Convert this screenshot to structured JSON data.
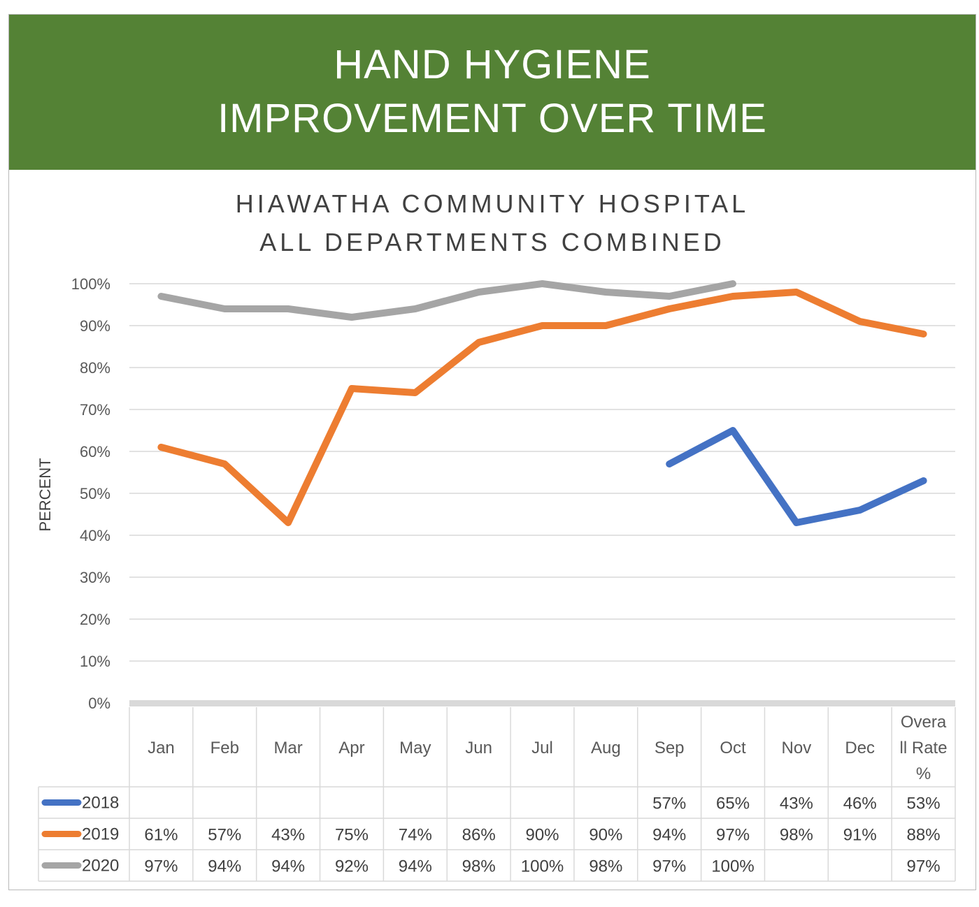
{
  "header": {
    "title_line1": "HAND HYGIENE",
    "title_line2": "IMPROVEMENT OVER TIME"
  },
  "subtitle": {
    "line1": "HIAWATHA COMMUNITY HOSPITAL",
    "line2": "ALL DEPARTMENTS COMBINED"
  },
  "chart_data": {
    "type": "line",
    "ylabel": "PERCENT",
    "ylim": [
      0,
      100
    ],
    "yticks": [
      "0%",
      "10%",
      "20%",
      "30%",
      "40%",
      "50%",
      "60%",
      "70%",
      "80%",
      "90%",
      "100%"
    ],
    "categories": [
      "Jan",
      "Feb",
      "Mar",
      "Apr",
      "May",
      "Jun",
      "Jul",
      "Aug",
      "Sep",
      "Oct",
      "Nov",
      "Dec",
      "Overall Rate %"
    ],
    "category_lines": [
      [
        "Jan"
      ],
      [
        "Feb"
      ],
      [
        "Mar"
      ],
      [
        "Apr"
      ],
      [
        "May"
      ],
      [
        "Jun"
      ],
      [
        "Jul"
      ],
      [
        "Aug"
      ],
      [
        "Sep"
      ],
      [
        "Oct"
      ],
      [
        "Nov"
      ],
      [
        "Dec"
      ],
      [
        "Overa",
        "ll Rate",
        "%"
      ]
    ],
    "grid": true,
    "legend": "data-table",
    "series": [
      {
        "name": "2018",
        "color": "#4472C4",
        "values": [
          null,
          null,
          null,
          null,
          null,
          null,
          null,
          null,
          57,
          65,
          43,
          46,
          53
        ],
        "labels": [
          "",
          "",
          "",
          "",
          "",
          "",
          "",
          "",
          "57%",
          "65%",
          "43%",
          "46%",
          "53%"
        ]
      },
      {
        "name": "2019",
        "color": "#ED7D31",
        "values": [
          61,
          57,
          43,
          75,
          74,
          86,
          90,
          90,
          94,
          97,
          98,
          91,
          88
        ],
        "labels": [
          "61%",
          "57%",
          "43%",
          "75%",
          "74%",
          "86%",
          "90%",
          "90%",
          "94%",
          "97%",
          "98%",
          "91%",
          "88%"
        ]
      },
      {
        "name": "2020",
        "color": "#A5A5A5",
        "values": [
          97,
          94,
          94,
          92,
          94,
          98,
          100,
          98,
          97,
          100,
          null,
          null,
          97
        ],
        "labels": [
          "97%",
          "94%",
          "94%",
          "92%",
          "94%",
          "98%",
          "100%",
          "98%",
          "97%",
          "100%",
          "",
          "",
          "97%"
        ]
      }
    ]
  }
}
